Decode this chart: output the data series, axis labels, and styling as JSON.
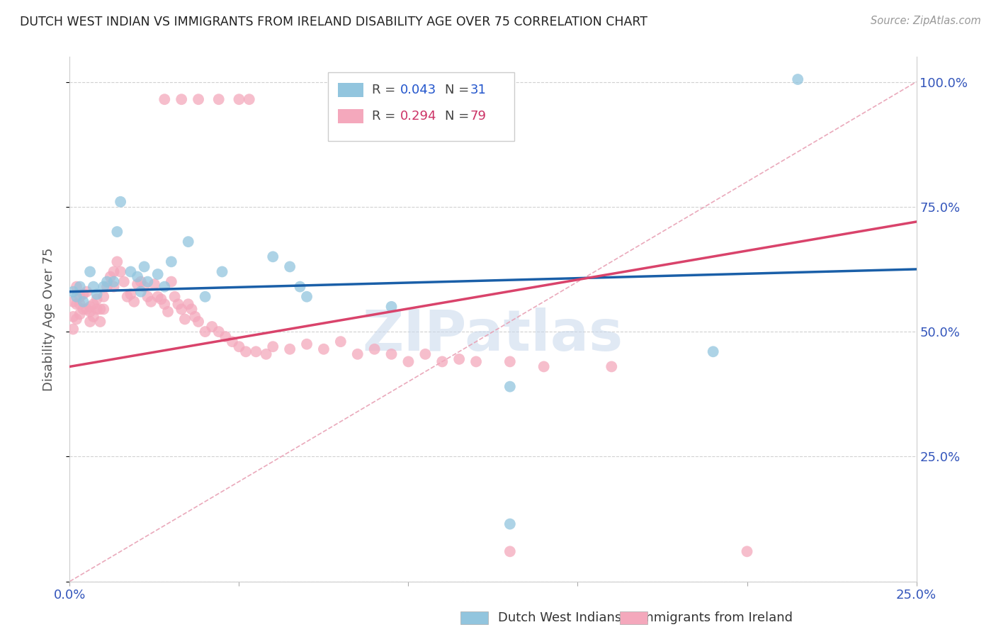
{
  "title": "DUTCH WEST INDIAN VS IMMIGRANTS FROM IRELAND DISABILITY AGE OVER 75 CORRELATION CHART",
  "source": "Source: ZipAtlas.com",
  "ylabel": "Disability Age Over 75",
  "xlim": [
    0.0,
    0.25
  ],
  "ylim": [
    0.0,
    1.05
  ],
  "xticks": [
    0.0,
    0.05,
    0.1,
    0.15,
    0.2,
    0.25
  ],
  "xticklabels": [
    "0.0%",
    "",
    "",
    "",
    "",
    "25.0%"
  ],
  "yticks": [
    0.0,
    0.25,
    0.5,
    0.75,
    1.0
  ],
  "yticklabels_right": [
    "",
    "25.0%",
    "50.0%",
    "75.0%",
    "100.0%"
  ],
  "legend_blue_R": "0.043",
  "legend_blue_N": "31",
  "legend_pink_R": "0.294",
  "legend_pink_N": "79",
  "legend_label_blue": "Dutch West Indians",
  "legend_label_pink": "Immigrants from Ireland",
  "blue_color": "#92c5de",
  "pink_color": "#f4a8bc",
  "blue_line_color": "#1a5fa8",
  "pink_line_color": "#d9436b",
  "diag_line_color": "#e8a0b4",
  "watermark_text": "ZIPatlas",
  "blue_line_y0": 0.58,
  "blue_line_y1": 0.625,
  "pink_line_y0": 0.43,
  "pink_line_y1": 0.72,
  "blue_scatter_x": [
    0.001,
    0.002,
    0.003,
    0.004,
    0.006,
    0.007,
    0.008,
    0.01,
    0.011,
    0.013,
    0.014,
    0.015,
    0.018,
    0.02,
    0.021,
    0.022,
    0.023,
    0.026,
    0.028,
    0.03,
    0.035,
    0.04,
    0.045,
    0.06,
    0.065,
    0.068,
    0.07,
    0.095,
    0.13,
    0.19,
    0.215
  ],
  "blue_scatter_y": [
    0.58,
    0.57,
    0.59,
    0.56,
    0.62,
    0.59,
    0.575,
    0.59,
    0.6,
    0.6,
    0.7,
    0.76,
    0.62,
    0.61,
    0.58,
    0.63,
    0.6,
    0.615,
    0.59,
    0.64,
    0.68,
    0.57,
    0.62,
    0.65,
    0.63,
    0.59,
    0.57,
    0.55,
    0.39,
    0.46,
    1.005
  ],
  "pink_scatter_x": [
    0.001,
    0.001,
    0.001,
    0.002,
    0.002,
    0.002,
    0.003,
    0.003,
    0.003,
    0.004,
    0.004,
    0.005,
    0.005,
    0.006,
    0.006,
    0.006,
    0.007,
    0.007,
    0.008,
    0.008,
    0.009,
    0.009,
    0.01,
    0.01,
    0.011,
    0.012,
    0.013,
    0.013,
    0.014,
    0.015,
    0.016,
    0.017,
    0.018,
    0.019,
    0.02,
    0.021,
    0.022,
    0.023,
    0.024,
    0.025,
    0.026,
    0.027,
    0.028,
    0.029,
    0.03,
    0.031,
    0.032,
    0.033,
    0.034,
    0.035,
    0.036,
    0.037,
    0.038,
    0.04,
    0.042,
    0.044,
    0.046,
    0.048,
    0.05,
    0.052,
    0.055,
    0.058,
    0.06,
    0.065,
    0.07,
    0.075,
    0.08,
    0.085,
    0.09,
    0.095,
    0.1,
    0.105,
    0.11,
    0.115,
    0.12,
    0.13,
    0.14,
    0.16,
    0.2
  ],
  "pink_scatter_y": [
    0.56,
    0.53,
    0.505,
    0.59,
    0.555,
    0.525,
    0.57,
    0.555,
    0.535,
    0.575,
    0.545,
    0.58,
    0.545,
    0.55,
    0.54,
    0.52,
    0.555,
    0.53,
    0.565,
    0.545,
    0.545,
    0.52,
    0.57,
    0.545,
    0.59,
    0.61,
    0.62,
    0.59,
    0.64,
    0.62,
    0.6,
    0.57,
    0.575,
    0.56,
    0.595,
    0.6,
    0.59,
    0.57,
    0.56,
    0.595,
    0.57,
    0.565,
    0.555,
    0.54,
    0.6,
    0.57,
    0.555,
    0.545,
    0.525,
    0.555,
    0.545,
    0.53,
    0.52,
    0.5,
    0.51,
    0.5,
    0.49,
    0.48,
    0.47,
    0.46,
    0.46,
    0.455,
    0.47,
    0.465,
    0.475,
    0.465,
    0.48,
    0.455,
    0.465,
    0.455,
    0.44,
    0.455,
    0.44,
    0.445,
    0.44,
    0.44,
    0.43,
    0.43,
    0.06
  ],
  "pink_outlier_top_x": [
    0.028,
    0.033,
    0.038,
    0.044,
    0.05,
    0.053
  ],
  "pink_outlier_top_y": [
    0.965,
    0.965,
    0.965,
    0.965,
    0.965,
    0.965
  ],
  "pink_outlier_low_x": [
    0.13
  ],
  "pink_outlier_low_y": [
    0.06
  ],
  "blue_outlier_x": [
    0.13
  ],
  "blue_outlier_y": [
    0.115
  ]
}
